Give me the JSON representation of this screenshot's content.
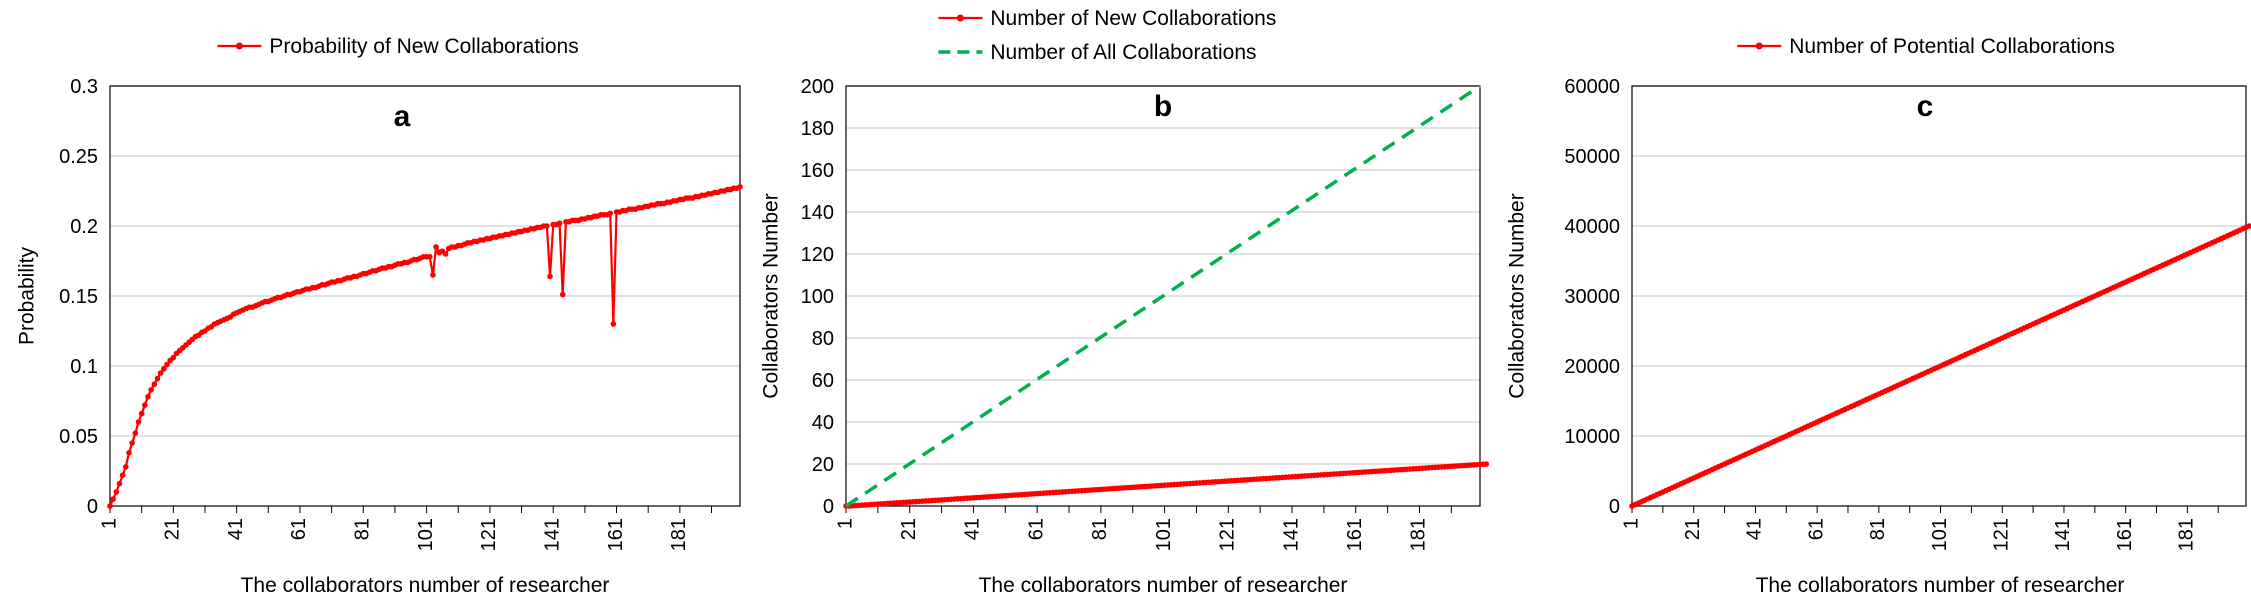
{
  "chart_data": [
    {
      "type": "line",
      "panel_label": "a",
      "xlabel": "The collaborators number of researcher",
      "ylabel": "Probability",
      "ylim": [
        0,
        0.3
      ],
      "yticks": [
        0,
        0.05,
        0.1,
        0.15,
        0.2,
        0.25,
        0.3
      ],
      "ytick_labels": [
        "0",
        "0.05",
        "0.1",
        "0.15",
        "0.2",
        "0.25",
        "0.3"
      ],
      "xlim": [
        1,
        200
      ],
      "xticks": [
        1,
        21,
        41,
        61,
        81,
        101,
        121,
        141,
        161,
        181
      ],
      "grid": true,
      "legend_position": "top-center",
      "series": [
        {
          "name": "Probability of New Collaborations",
          "color": "#ff0000",
          "style": "line-markers",
          "x_start": 1,
          "x_step": 1,
          "y": [
            0,
            0.005,
            0.01,
            0.016,
            0.022,
            0.028,
            0.038,
            0.045,
            0.052,
            0.06,
            0.066,
            0.072,
            0.078,
            0.083,
            0.087,
            0.091,
            0.095,
            0.098,
            0.101,
            0.104,
            0.106,
            0.109,
            0.111,
            0.113,
            0.115,
            0.117,
            0.119,
            0.121,
            0.122,
            0.124,
            0.125,
            0.127,
            0.128,
            0.13,
            0.131,
            0.132,
            0.133,
            0.134,
            0.135,
            0.137,
            0.138,
            0.139,
            0.14,
            0.141,
            0.142,
            0.142,
            0.143,
            0.144,
            0.145,
            0.146,
            0.146,
            0.147,
            0.148,
            0.149,
            0.149,
            0.15,
            0.151,
            0.151,
            0.152,
            0.153,
            0.153,
            0.154,
            0.155,
            0.155,
            0.156,
            0.156,
            0.157,
            0.158,
            0.158,
            0.159,
            0.16,
            0.16,
            0.161,
            0.161,
            0.162,
            0.163,
            0.163,
            0.164,
            0.164,
            0.165,
            0.166,
            0.166,
            0.167,
            0.168,
            0.168,
            0.169,
            0.17,
            0.17,
            0.171,
            0.171,
            0.172,
            0.173,
            0.173,
            0.174,
            0.174,
            0.175,
            0.176,
            0.176,
            0.177,
            0.178,
            0.178,
            0.178,
            0.165,
            0.185,
            0.181,
            0.182,
            0.18,
            0.184,
            0.185,
            0.185,
            0.186,
            0.186,
            0.187,
            0.188,
            0.188,
            0.189,
            0.189,
            0.19,
            0.19,
            0.191,
            0.191,
            0.192,
            0.192,
            0.193,
            0.193,
            0.194,
            0.194,
            0.195,
            0.195,
            0.196,
            0.196,
            0.197,
            0.197,
            0.198,
            0.198,
            0.199,
            0.199,
            0.2,
            0.2,
            0.164,
            0.201,
            0.201,
            0.202,
            0.151,
            0.203,
            0.203,
            0.204,
            0.204,
            0.204,
            0.205,
            0.205,
            0.206,
            0.206,
            0.207,
            0.207,
            0.208,
            0.208,
            0.208,
            0.209,
            0.13,
            0.21,
            0.21,
            0.211,
            0.211,
            0.212,
            0.212,
            0.212,
            0.213,
            0.213,
            0.214,
            0.214,
            0.215,
            0.215,
            0.216,
            0.216,
            0.216,
            0.217,
            0.217,
            0.218,
            0.218,
            0.219,
            0.219,
            0.22,
            0.22,
            0.22,
            0.221,
            0.221,
            0.222,
            0.222,
            0.223,
            0.223,
            0.224,
            0.224,
            0.225,
            0.225,
            0.226,
            0.226,
            0.227,
            0.227,
            0.228
          ]
        }
      ]
    },
    {
      "type": "line",
      "panel_label": "b",
      "xlabel": "The collaborators number of researcher",
      "ylabel": "Collaborators Number",
      "ylim": [
        0,
        200
      ],
      "yticks": [
        0,
        20,
        40,
        60,
        80,
        100,
        120,
        140,
        160,
        180,
        200
      ],
      "ytick_labels": [
        "0",
        "20",
        "40",
        "60",
        "80",
        "100",
        "120",
        "140",
        "160",
        "180",
        "200"
      ],
      "xlim": [
        1,
        200
      ],
      "xticks": [
        1,
        21,
        41,
        61,
        81,
        101,
        121,
        141,
        161,
        181
      ],
      "grid": true,
      "legend_position": "top-center",
      "series": [
        {
          "name": "Number of New Collaborations",
          "color": "#ff0000",
          "style": "line-markers",
          "x_start": 1,
          "x_step": 1,
          "y": [
            0,
            0,
            0.1,
            0.2,
            0.3,
            0.4,
            0.5,
            0.6,
            0.7,
            0.8,
            0.9,
            1,
            1.1,
            1.2,
            1.3,
            1.4,
            1.5,
            1.6,
            1.7,
            1.8,
            1.9,
            2,
            2.1,
            2.2,
            2.3,
            2.4,
            2.5,
            2.6,
            2.7,
            2.8,
            2.9,
            3,
            3.1,
            3.2,
            3.3,
            3.4,
            3.5,
            3.6,
            3.7,
            3.8,
            3.9,
            4,
            4.1,
            4.2,
            4.3,
            4.4,
            4.5,
            4.6,
            4.7,
            4.8,
            4.9,
            5,
            5.1,
            5.2,
            5.3,
            5.4,
            5.5,
            5.6,
            5.7,
            5.8,
            5.9,
            6,
            6.1,
            6.2,
            6.3,
            6.4,
            6.5,
            6.6,
            6.7,
            6.8,
            6.9,
            7,
            7.1,
            7.2,
            7.3,
            7.4,
            7.5,
            7.6,
            7.7,
            7.8,
            7.9,
            8,
            8.1,
            8.2,
            8.3,
            8.4,
            8.5,
            8.6,
            8.7,
            8.8,
            8.9,
            9,
            9.1,
            9.2,
            9.3,
            9.4,
            9.5,
            9.6,
            9.7,
            9.8,
            9.9,
            10,
            10.1,
            10.2,
            10.3,
            10.4,
            10.5,
            10.6,
            10.7,
            10.8,
            10.9,
            11,
            11.1,
            11.2,
            11.3,
            11.4,
            11.5,
            11.6,
            11.7,
            11.8,
            11.9,
            12,
            12.1,
            12.2,
            12.3,
            12.4,
            12.5,
            12.6,
            12.7,
            12.8,
            12.9,
            13,
            13.1,
            13.2,
            13.3,
            13.4,
            13.5,
            13.6,
            13.7,
            13.8,
            13.9,
            14,
            14.1,
            14.2,
            14.3,
            14.4,
            14.5,
            14.6,
            14.7,
            14.8,
            14.9,
            15,
            15.1,
            15.2,
            15.3,
            15.4,
            15.5,
            15.6,
            15.7,
            15.8,
            15.9,
            16,
            16.1,
            16.2,
            16.3,
            16.4,
            16.5,
            16.6,
            16.7,
            16.8,
            16.9,
            17,
            17.1,
            17.2,
            17.3,
            17.4,
            17.5,
            17.6,
            17.7,
            17.8,
            17.9,
            18,
            18.1,
            18.2,
            18.3,
            18.4,
            18.5,
            18.6,
            18.7,
            18.8,
            18.9,
            19,
            19.1,
            19.2,
            19.3,
            19.4,
            19.5,
            19.6,
            19.7,
            19.8,
            19.9,
            20
          ]
        },
        {
          "name": "Number of All Collaborations",
          "color": "#00b050",
          "style": "dashed",
          "x_start": 1,
          "x_step": 1,
          "y": [
            0,
            200
          ]
        }
      ]
    },
    {
      "type": "line",
      "panel_label": "c",
      "xlabel": "The collaborators number of researcher",
      "ylabel": "Collaborators Number",
      "ylim": [
        0,
        60000
      ],
      "yticks": [
        0,
        10000,
        20000,
        30000,
        40000,
        50000,
        60000
      ],
      "ytick_labels": [
        "0",
        "10000",
        "20000",
        "30000",
        "40000",
        "50000",
        "60000"
      ],
      "xlim": [
        1,
        200
      ],
      "xticks": [
        1,
        21,
        41,
        61,
        81,
        101,
        121,
        141,
        161,
        181
      ],
      "grid": true,
      "legend_position": "top-center",
      "series": [
        {
          "name": "Number of Potential Collaborations",
          "color": "#ff0000",
          "style": "line-markers",
          "x_start": 1,
          "x_step": 1,
          "y": [
            0,
            200,
            400,
            600,
            800,
            1000,
            1200,
            1400,
            1600,
            1800,
            2000,
            2200,
            2400,
            2600,
            2800,
            3000,
            3200,
            3400,
            3600,
            3800,
            4000,
            4200,
            4400,
            4600,
            4800,
            5000,
            5200,
            5400,
            5600,
            5800,
            6000,
            6200,
            6400,
            6600,
            6800,
            7000,
            7200,
            7400,
            7600,
            7800,
            8000,
            8200,
            8400,
            8600,
            8800,
            9000,
            9200,
            9400,
            9600,
            9800,
            10000,
            10200,
            10400,
            10600,
            10800,
            11000,
            11200,
            11400,
            11600,
            11800,
            12000,
            12200,
            12400,
            12600,
            12800,
            13000,
            13200,
            13400,
            13600,
            13800,
            14000,
            14200,
            14400,
            14600,
            14800,
            15000,
            15200,
            15400,
            15600,
            15800,
            16000,
            16200,
            16400,
            16600,
            16800,
            17000,
            17200,
            17400,
            17600,
            17800,
            18000,
            18200,
            18400,
            18600,
            18800,
            19000,
            19200,
            19400,
            19600,
            19800,
            20000,
            20200,
            20400,
            20600,
            20800,
            21000,
            21200,
            21400,
            21600,
            21800,
            22000,
            22200,
            22400,
            22600,
            22800,
            23000,
            23200,
            23400,
            23600,
            23800,
            24000,
            24200,
            24400,
            24600,
            24800,
            25000,
            25200,
            25400,
            25600,
            25800,
            26000,
            26200,
            26400,
            26600,
            26800,
            27000,
            27200,
            27400,
            27600,
            27800,
            28000,
            28200,
            28400,
            28600,
            28800,
            29000,
            29200,
            29400,
            29600,
            29800,
            30000,
            30200,
            30400,
            30600,
            30800,
            31000,
            31200,
            31400,
            31600,
            31800,
            32000,
            32200,
            32400,
            32600,
            32800,
            33000,
            33200,
            33400,
            33600,
            33800,
            34000,
            34200,
            34400,
            34600,
            34800,
            35000,
            35200,
            35400,
            35600,
            35800,
            36000,
            36200,
            36400,
            36600,
            36800,
            37000,
            37200,
            37400,
            37600,
            37800,
            38000,
            38200,
            38400,
            38600,
            38800,
            39000,
            39200,
            39400,
            39600,
            39800,
            40000
          ]
        }
      ]
    }
  ]
}
